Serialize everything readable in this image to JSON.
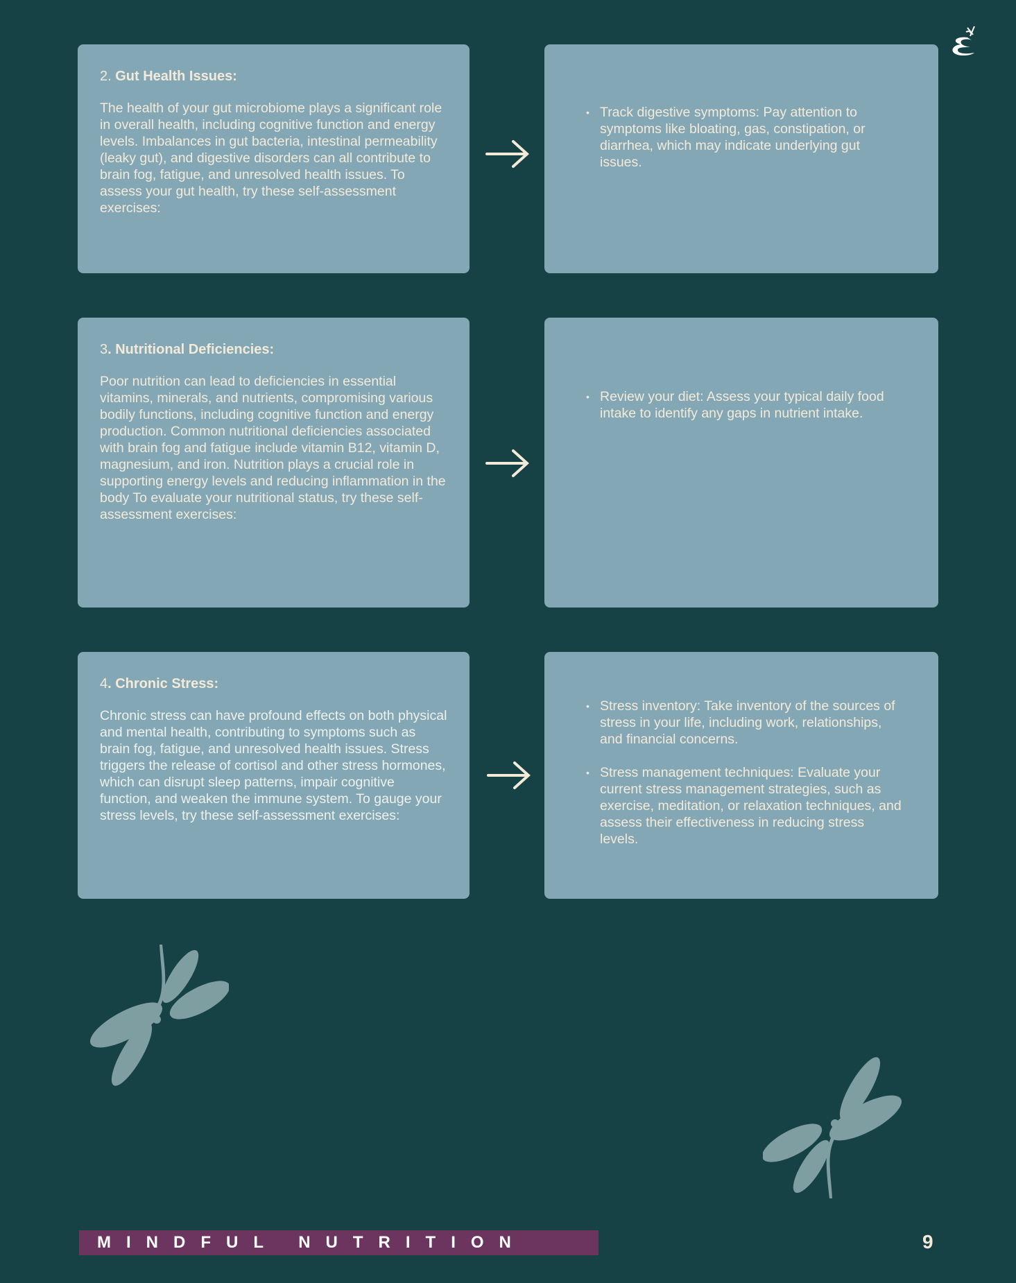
{
  "sections": [
    {
      "number": "2.",
      "title": "Gut Health Issues:",
      "body": "The health of your gut microbiome plays a significant role in overall health, including cognitive function and energy levels. Imbalances in gut bacteria, intestinal permeability (leaky gut), and digestive disorders can all contribute to brain fog, fatigue, and unresolved health issues. To assess your gut health, try these self-assessment exercises:",
      "bullets": [
        "Track digestive symptoms: Pay attention to symptoms like bloating, gas, constipation, or diarrhea, which may indicate underlying gut issues."
      ]
    },
    {
      "number": "3",
      "title": ". Nutritional Deficiencies:",
      "body": "Poor nutrition can lead to deficiencies in essential vitamins, minerals, and nutrients, compromising various bodily functions, including cognitive function and energy production. Common nutritional deficiencies associated with brain fog and fatigue include vitamin B12, vitamin D, magnesium, and iron. Nutrition plays a crucial role in supporting energy levels and reducing inflammation in the body To evaluate your nutritional status, try these self-assessment exercises:",
      "bullets": [
        "Review your diet: Assess your typical daily food intake to identify any gaps in nutrient intake."
      ]
    },
    {
      "number": "4",
      "title": ". Chronic Stress:",
      "body": "Chronic stress can have profound effects on both physical and mental health, contributing to symptoms such as brain fog, fatigue, and unresolved health issues. Stress triggers the release of cortisol and other stress hormones, which can disrupt sleep patterns, impair cognitive function, and weaken the immune system. To gauge your stress levels, try these self-assessment exercises:",
      "bullets": [
        " Stress inventory: Take inventory of the sources of stress in your life, including work, relationships, and financial concerns.",
        "Stress management techniques: Evaluate your current stress management strategies, such as exercise, meditation, or relaxation techniques, and assess their effectiveness in reducing stress levels."
      ]
    }
  ],
  "footer": {
    "brand": "MINDFUL NUTRITION",
    "page_number": "9"
  },
  "colors": {
    "background": "#174245",
    "card": "#83a7b4",
    "text": "#f3ead9",
    "footer_bar": "#6b3560",
    "dragonfly": "#7f9ea1"
  },
  "icons": [
    "arrow-right-icon",
    "dragonfly-icon",
    "logo-icon"
  ]
}
